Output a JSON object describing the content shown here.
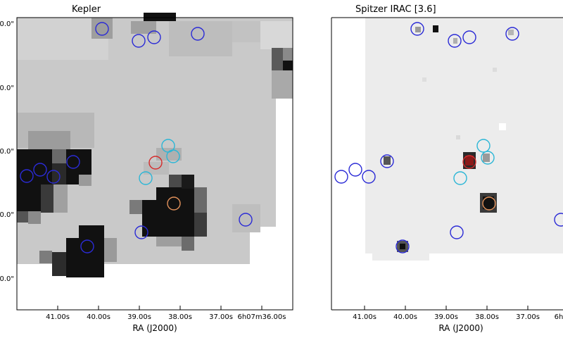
{
  "panels": [
    {
      "title": "Kepler",
      "xlabel": "RA (J2000)",
      "xticks": [
        "41.00s",
        "40.00s",
        "39.00s",
        "38.00s",
        "37.00s",
        "6h07m36.00s"
      ],
      "yticks": [
        "0.0\"",
        "0.0\"",
        "0.0\"",
        "0.0\"",
        "0.0\""
      ]
    },
    {
      "title": "Spitzer IRAC [3.6]",
      "xlabel": "RA (J2000)",
      "xticks": [
        "41.00s",
        "40.00s",
        "39.00s",
        "38.00s",
        "37.00s",
        "6h"
      ],
      "yticks": []
    }
  ],
  "colors": {
    "blue_marker": "#2b2bd6",
    "cyan_marker": "#2bb6d6",
    "red_marker": "#d62b2b",
    "orange_marker": "#e0905a",
    "background_gray": "#c8c8c8",
    "dark_pixel": "#111111"
  }
}
